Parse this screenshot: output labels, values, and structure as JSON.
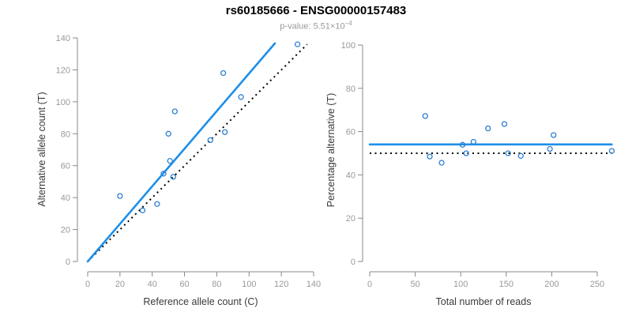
{
  "header": {
    "title": "rs60185666 - ENSG00000157483",
    "subtitle_prefix": "p-value: 5.51×10",
    "subtitle_exponent": "−4"
  },
  "colors": {
    "point": "#2e7fd0",
    "fit_line": "#1e8fe8",
    "identity_line": "#000000",
    "axis": "#888888",
    "tick_label": "#999999",
    "axis_title": "#3a3a3a",
    "title": "#000000",
    "subtitle": "#9a9a9a"
  },
  "chart_data": [
    {
      "type": "scatter",
      "name": "allele-count-scatter",
      "xlabel": "Reference allele count (C)",
      "ylabel": "Alternative allele count (T)",
      "xlim": [
        0,
        140
      ],
      "ylim": [
        0,
        140
      ],
      "xticks": [
        0,
        20,
        40,
        60,
        80,
        100,
        120,
        140
      ],
      "yticks": [
        0,
        20,
        40,
        60,
        80,
        100,
        120,
        140
      ],
      "grid": false,
      "points": [
        [
          20,
          41
        ],
        [
          34,
          32
        ],
        [
          43,
          36
        ],
        [
          47,
          55
        ],
        [
          53,
          53
        ],
        [
          51,
          63
        ],
        [
          50,
          80
        ],
        [
          54,
          94
        ],
        [
          76,
          76
        ],
        [
          85,
          81
        ],
        [
          95,
          103
        ],
        [
          84,
          118
        ],
        [
          130,
          136
        ]
      ],
      "fit_line": {
        "style": "solid",
        "x1": 0,
        "y1": 0,
        "x2": 116,
        "y2": 136.6
      },
      "identity_line": {
        "style": "dotted",
        "x1": 0,
        "y1": 0,
        "x2": 136,
        "y2": 136
      }
    },
    {
      "type": "scatter",
      "name": "percentage-vs-reads-scatter",
      "xlabel": "Total number of reads",
      "ylabel": "Percentage alternative (T)",
      "xlim": [
        0,
        266
      ],
      "ylim": [
        0,
        100
      ],
      "xticks": [
        0,
        50,
        100,
        150,
        200,
        250
      ],
      "yticks": [
        0,
        20,
        40,
        60,
        80,
        100
      ],
      "grid": false,
      "points": [
        [
          61,
          67.2
        ],
        [
          66,
          48.5
        ],
        [
          79,
          45.6
        ],
        [
          102,
          53.9
        ],
        [
          106,
          50.0
        ],
        [
          114,
          55.3
        ],
        [
          130,
          61.5
        ],
        [
          148,
          63.5
        ],
        [
          152,
          50.0
        ],
        [
          166,
          48.8
        ],
        [
          198,
          52.0
        ],
        [
          202,
          58.4
        ],
        [
          266,
          51.1
        ]
      ],
      "fit_line": {
        "style": "solid",
        "x1": 0,
        "y1": 54.1,
        "x2": 266,
        "y2": 54.1
      },
      "identity_line": {
        "style": "dotted",
        "x1": 0,
        "y1": 50,
        "x2": 266,
        "y2": 50
      }
    }
  ]
}
